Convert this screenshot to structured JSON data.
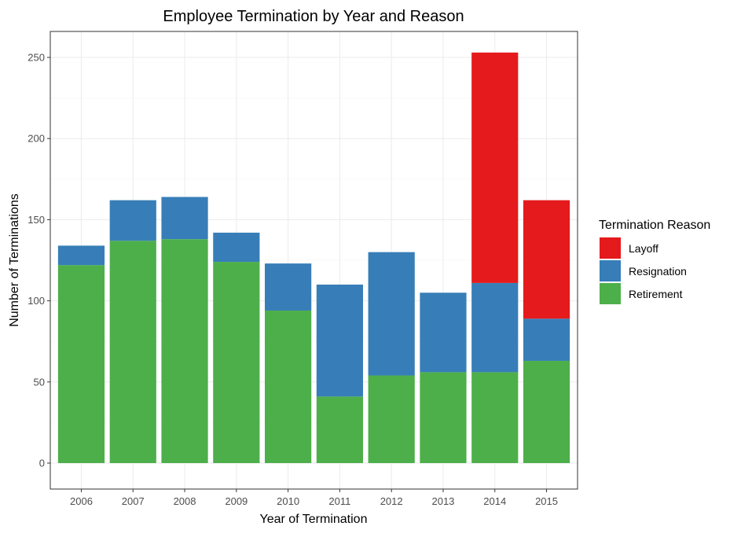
{
  "chart_data": {
    "type": "bar",
    "stacked": true,
    "title": "Employee Termination by Year and Reason",
    "xlabel": "Year of Termination",
    "ylabel": "Number of Terminations",
    "categories": [
      "2006",
      "2007",
      "2008",
      "2009",
      "2010",
      "2011",
      "2012",
      "2013",
      "2014",
      "2015"
    ],
    "series": [
      {
        "name": "Retirement",
        "color": "#4daf4a",
        "values": [
          122,
          137,
          138,
          124,
          94,
          41,
          54,
          56,
          56,
          63
        ]
      },
      {
        "name": "Resignation",
        "color": "#377eb8",
        "values": [
          12,
          25,
          26,
          18,
          29,
          69,
          76,
          49,
          55,
          26
        ]
      },
      {
        "name": "Layoff",
        "color": "#e41a1c",
        "values": [
          0,
          0,
          0,
          0,
          0,
          0,
          0,
          0,
          142,
          73
        ]
      }
    ],
    "yticks": [
      0,
      50,
      100,
      150,
      200,
      250
    ],
    "ylim": [
      -16,
      266
    ],
    "grid": true,
    "legend": {
      "title": "Termination Reason",
      "position": "right",
      "order": [
        "Layoff",
        "Resignation",
        "Retirement"
      ]
    }
  }
}
